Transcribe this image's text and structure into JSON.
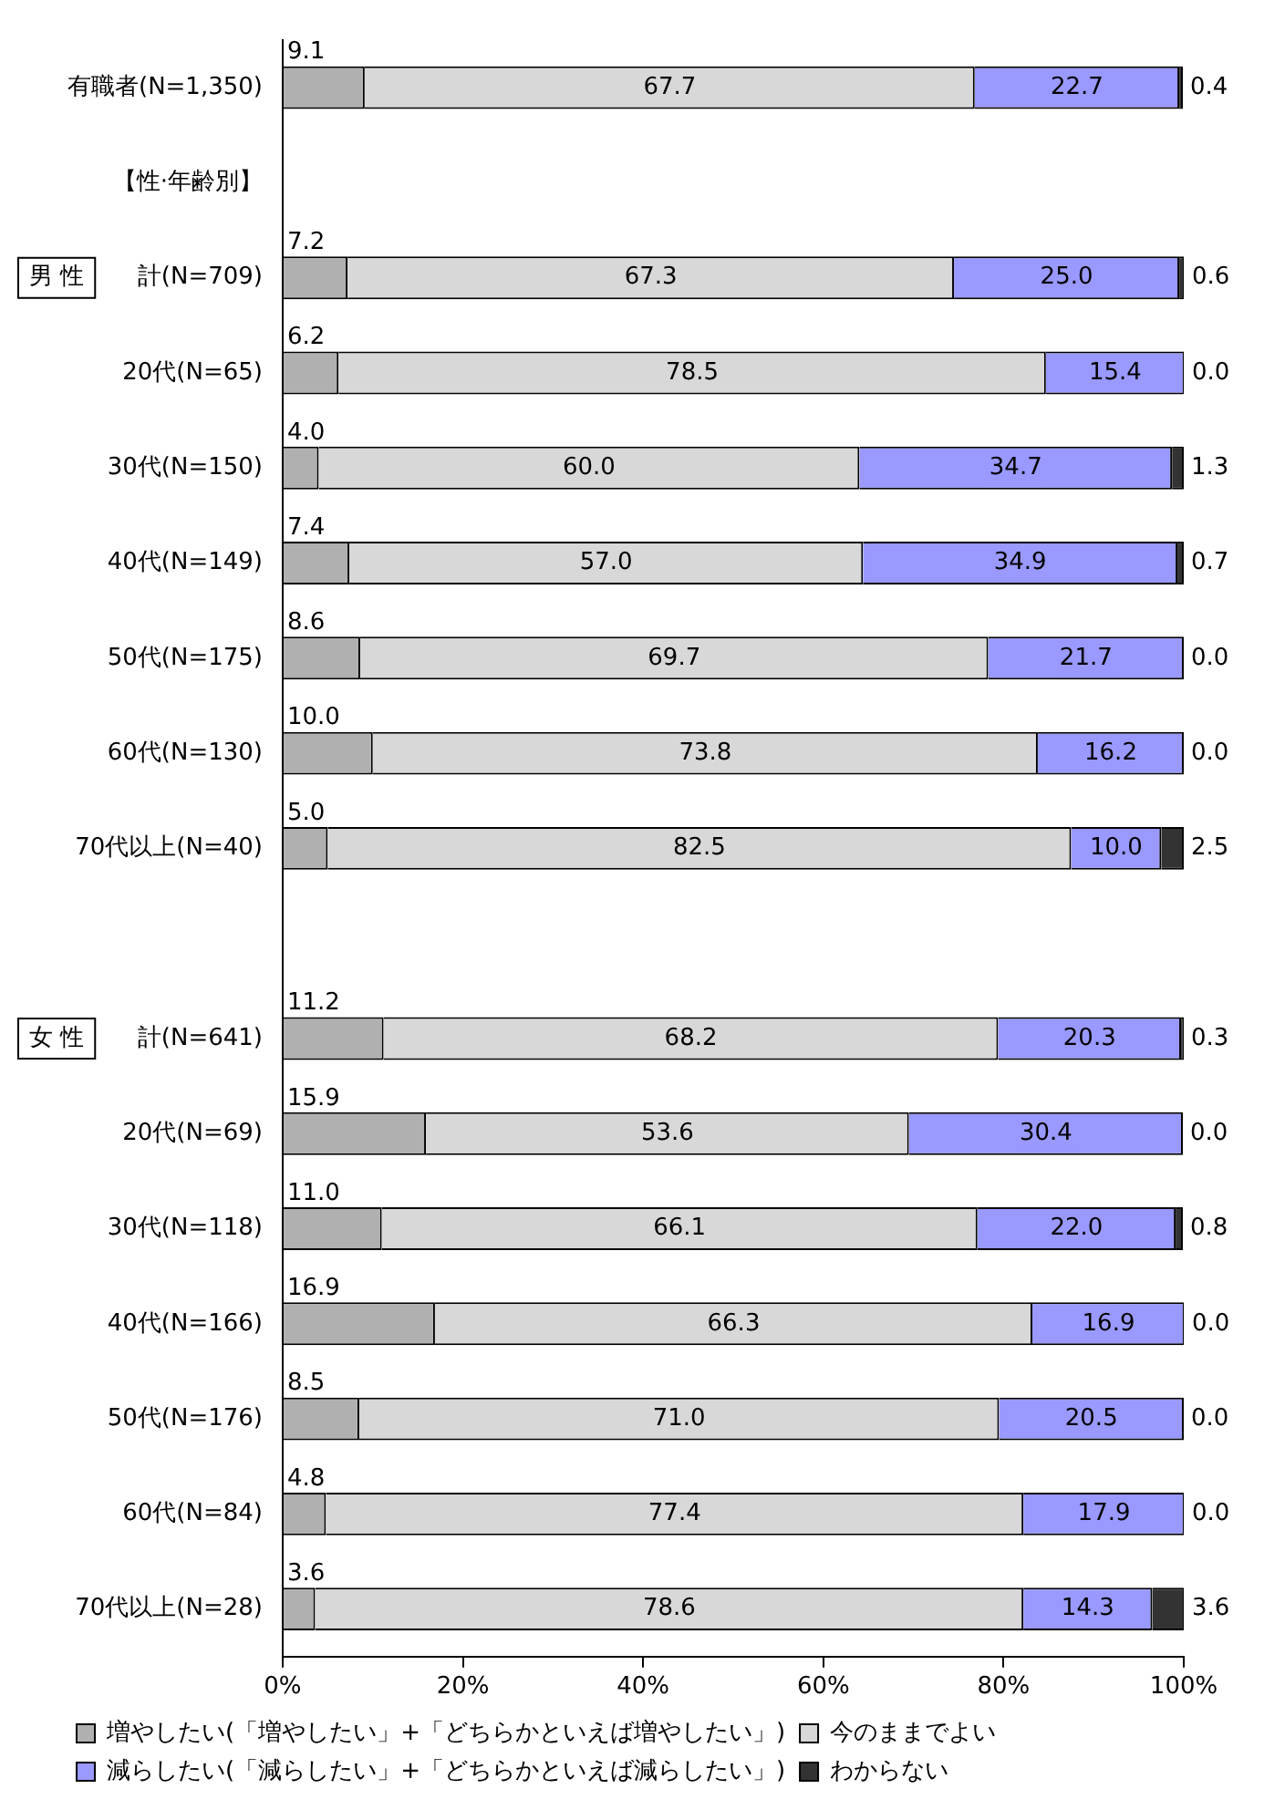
{
  "chart_data": {
    "type": "bar",
    "orientation": "horizontal",
    "stacked": true,
    "legend": "bottom",
    "grid": false,
    "categories": [
      "有職者(N=1,350)",
      "【性·年齢別】",
      "計(N=709)",
      "20代(N=65)",
      "30代(N=150)",
      "40代(N=149)",
      "50代(N=175)",
      "60代(N=130)",
      "70代以上(N=40)",
      null,
      "計(N=641)",
      "20代(N=69)",
      "30代(N=118)",
      "40代(N=166)",
      "50代(N=176)",
      "60代(N=84)",
      "70代以上(N=28)"
    ],
    "xlim": [
      0,
      100
    ],
    "xticks": [
      {
        "value": 0,
        "label": "0%"
      },
      {
        "value": 20,
        "label": "20%"
      },
      {
        "value": 40,
        "label": "40%"
      },
      {
        "value": 60,
        "label": "60%"
      },
      {
        "value": 80,
        "label": "80%"
      },
      {
        "value": 100,
        "label": "100%"
      }
    ],
    "series": [
      {
        "name": "増やしたい(「増やしたい」+「どちらかといえば増やしたい」)",
        "color": "#b0b0b0",
        "values": [
          9.1,
          null,
          7.2,
          6.2,
          4.0,
          7.4,
          8.6,
          10.0,
          5.0,
          null,
          11.2,
          15.9,
          11.0,
          16.9,
          8.5,
          4.8,
          3.6
        ],
        "value_labels": [
          "9.1",
          null,
          "7.2",
          "6.2",
          "4.0",
          "7.4",
          "8.6",
          "10.0",
          "5.0",
          null,
          "11.2",
          "15.9",
          "11.0",
          "16.9",
          "8.5",
          "4.8",
          "3.6"
        ]
      },
      {
        "name": "今のままでよい",
        "color": "#d8d8d8",
        "values": [
          67.7,
          null,
          67.3,
          78.5,
          60.0,
          57.0,
          69.7,
          73.8,
          82.5,
          null,
          68.2,
          53.6,
          66.1,
          66.3,
          71.0,
          77.4,
          78.6
        ],
        "value_labels": [
          "67.7",
          null,
          "67.3",
          "78.5",
          "60.0",
          "57.0",
          "69.7",
          "73.8",
          "82.5",
          null,
          "68.2",
          "53.6",
          "66.1",
          "66.3",
          "71.0",
          "77.4",
          "78.6"
        ]
      },
      {
        "name": "減らしたい(「減らしたい」+「どちらかといえば減らしたい」)",
        "color": "#9999ff",
        "values": [
          22.7,
          null,
          25.0,
          15.4,
          34.7,
          34.9,
          21.7,
          16.2,
          10.0,
          null,
          20.3,
          30.4,
          22.0,
          16.9,
          20.5,
          17.9,
          14.3
        ],
        "value_labels": [
          "22.7",
          null,
          "25.0",
          "15.4",
          "34.7",
          "34.9",
          "21.7",
          "16.2",
          "10.0",
          null,
          "20.3",
          "30.4",
          "22.0",
          "16.9",
          "20.5",
          "17.9",
          "14.3"
        ]
      },
      {
        "name": "わからない",
        "color": "#333333",
        "values": [
          0.4,
          null,
          0.6,
          0.0,
          1.3,
          0.7,
          0.0,
          0.0,
          2.5,
          null,
          0.3,
          0.0,
          0.8,
          0.0,
          0.0,
          0.0,
          3.6
        ],
        "value_labels": [
          "0.4",
          null,
          "0.6",
          "0.0",
          "1.3",
          "0.7",
          "0.0",
          "0.0",
          "2.5",
          null,
          "0.3",
          "0.0",
          "0.8",
          "0.0",
          "0.0",
          "0.0",
          "3.6"
        ]
      }
    ],
    "annotations": [
      "男 性",
      "女 性"
    ]
  }
}
